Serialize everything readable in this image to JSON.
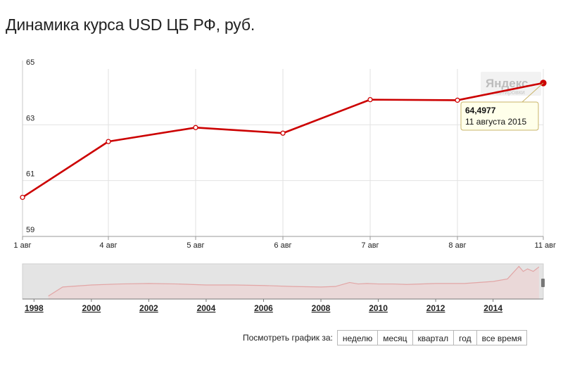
{
  "chart_data": [
    {
      "type": "line",
      "title": "Динамика курса USD ЦБ РФ, руб.",
      "categories": [
        "1 авг",
        "4 авг",
        "5 авг",
        "6 авг",
        "7 авг",
        "8 авг",
        "11 авг"
      ],
      "series": [
        {
          "values": [
            60.4,
            62.4,
            62.9,
            62.7,
            63.9,
            63.88,
            64.4977
          ],
          "color": "#cc0000"
        }
      ],
      "yticks": [
        "65",
        "63",
        "61",
        "59"
      ],
      "ylim": [
        59,
        65
      ],
      "grid": true,
      "tooltip": {
        "value": "64,4977",
        "date": "11 августа 2015"
      },
      "brand": {
        "text": "Яндекс",
        "subtext": "котировки"
      }
    },
    {
      "type": "area",
      "xlabels": [
        "1998",
        "2000",
        "2002",
        "2004",
        "2006",
        "2008",
        "2010",
        "2012",
        "2014"
      ],
      "x": [
        1998.5,
        1999,
        2000,
        2001,
        2002,
        2003,
        2004,
        2005,
        2006,
        2007,
        2008,
        2008.5,
        2009,
        2009.3,
        2009.6,
        2010,
        2010.5,
        2011,
        2012,
        2013,
        2014,
        2014.5,
        2014.9,
        2015.05,
        2015.2,
        2015.4,
        2015.6
      ],
      "values": [
        6,
        24,
        28,
        30,
        31,
        30,
        28,
        28,
        27,
        25,
        24,
        25,
        33,
        30,
        31,
        30,
        30,
        29,
        31,
        31,
        35,
        40,
        65,
        55,
        60,
        55,
        64
      ],
      "ylim": [
        0,
        70
      ],
      "color": "#cc0000"
    }
  ],
  "period_selector": {
    "label": "Посмотреть график за:",
    "options": [
      "неделю",
      "месяц",
      "квартал",
      "год",
      "все время"
    ]
  }
}
